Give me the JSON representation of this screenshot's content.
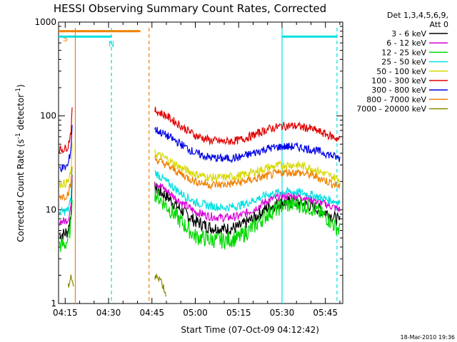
{
  "chart_data": {
    "type": "line",
    "title": "HESSI Observing Summary Count Rates, Corrected",
    "xlabel": "Start Time (07-Oct-09 04:12:42)",
    "ylabel": "Corrected Count Rate (s",
    "ylabel_sup1": "-1",
    "ylabel_mid": " detector",
    "ylabel_sup2": "-1",
    "ylabel_end": ")",
    "y_scale": "log",
    "ylim": [
      1,
      1000
    ],
    "xlim": [
      "04:12:42",
      "05:51:00"
    ],
    "x_ticks": [
      "04:15",
      "04:30",
      "04:45",
      "05:00",
      "05:15",
      "05:30",
      "05:45"
    ],
    "y_ticks": [
      "1",
      "10",
      "100",
      "1000"
    ],
    "legend_header": [
      "Det 1,3,4,5,6,9,",
      "Att 0"
    ],
    "legend_position": "top-right",
    "footer": "18-Mar-2010 19:36",
    "series": [
      {
        "name": "3 - 6 keV",
        "color": "#000000",
        "segments": [
          {
            "x": [
              "04:13:00",
              "04:14:00",
              "04:15:00",
              "04:16:00",
              "04:17:00",
              "04:17:30"
            ],
            "y": [
              5.5,
              5.5,
              5.6,
              6.0,
              9,
              25
            ]
          },
          {
            "x": [
              "04:46:00",
              "04:50:00",
              "04:55:00",
              "05:00:00",
              "05:05:00",
              "05:10:00",
              "05:15:00",
              "05:20:00",
              "05:25:00",
              "05:30:00",
              "05:35:00",
              "05:40:00",
              "05:45:00",
              "05:50:00"
            ],
            "y": [
              17,
              14,
              10,
              7.5,
              6.5,
              6.2,
              6.5,
              8,
              10.5,
              12,
              12,
              11,
              9.5,
              7.5
            ]
          }
        ]
      },
      {
        "name": "6 - 12 keV",
        "color": "#d800d8",
        "segments": [
          {
            "x": [
              "04:13:00",
              "04:14:00",
              "04:15:00",
              "04:16:00",
              "04:17:00",
              "04:17:30"
            ],
            "y": [
              7.5,
              7.5,
              7.6,
              8,
              11,
              30
            ]
          },
          {
            "x": [
              "04:46:00",
              "04:50:00",
              "04:55:00",
              "05:00:00",
              "05:05:00",
              "05:10:00",
              "05:15:00",
              "05:20:00",
              "05:25:00",
              "05:30:00",
              "05:35:00",
              "05:40:00",
              "05:45:00",
              "05:50:00"
            ],
            "y": [
              20,
              16,
              12,
              9.5,
              8.5,
              8.2,
              8.5,
              10,
              12.5,
              14,
              14,
              13,
              11.5,
              10
            ]
          }
        ]
      },
      {
        "name": "12 - 25 keV",
        "color": "#00d800",
        "segments": [
          {
            "x": [
              "04:13:00",
              "04:14:00",
              "04:15:00",
              "04:16:00",
              "04:17:00",
              "04:17:30"
            ],
            "y": [
              4.2,
              4.2,
              4.3,
              4.8,
              7,
              18
            ]
          },
          {
            "x": [
              "04:46:00",
              "04:50:00",
              "04:55:00",
              "05:00:00",
              "05:05:00",
              "05:10:00",
              "05:15:00",
              "05:20:00",
              "05:25:00",
              "05:30:00",
              "05:35:00",
              "05:40:00",
              "05:45:00",
              "05:50:00"
            ],
            "y": [
              15,
              11,
              7.5,
              5.2,
              4.8,
              4.7,
              5,
              6.5,
              9,
              11,
              11.5,
              10.5,
              8.5,
              6
            ]
          }
        ]
      },
      {
        "name": "25 - 50 keV",
        "color": "#00e0e0",
        "segments": [
          {
            "x": [
              "04:13:00",
              "04:14:00",
              "04:15:00",
              "04:16:00",
              "04:17:00",
              "04:17:30"
            ],
            "y": [
              9.5,
              9.5,
              9.6,
              10,
              13,
              35
            ]
          },
          {
            "x": [
              "04:46:00",
              "04:50:00",
              "04:55:00",
              "05:00:00",
              "05:05:00",
              "05:10:00",
              "05:15:00",
              "05:20:00",
              "05:25:00",
              "05:30:00",
              "05:35:00",
              "05:40:00",
              "05:45:00",
              "05:50:00"
            ],
            "y": [
              25,
              20,
              15,
              12,
              11,
              10.5,
              11,
              12.5,
              14.5,
              15.5,
              15.5,
              14.5,
              13,
              12
            ]
          }
        ]
      },
      {
        "name": "50 - 100 keV",
        "color": "#d8d800",
        "segments": [
          {
            "x": [
              "04:13:00",
              "04:14:00",
              "04:15:00",
              "04:16:00",
              "04:17:00",
              "04:17:30"
            ],
            "y": [
              19,
              19,
              19,
              20,
              25,
              55
            ]
          },
          {
            "x": [
              "04:46:00",
              "04:50:00",
              "04:55:00",
              "05:00:00",
              "05:05:00",
              "05:10:00",
              "05:15:00",
              "05:20:00",
              "05:25:00",
              "05:30:00",
              "05:35:00",
              "05:40:00",
              "05:45:00",
              "05:50:00"
            ],
            "y": [
              40,
              35,
              28,
              24,
              22,
              22,
              23,
              25,
              28,
              30,
              30,
              28,
              24,
              21
            ]
          }
        ]
      },
      {
        "name": "100 - 300 keV",
        "color": "#e00000",
        "segments": [
          {
            "x": [
              "04:13:00",
              "04:14:00",
              "04:15:00",
              "04:16:00",
              "04:17:00",
              "04:17:30"
            ],
            "y": [
              44,
              44,
              45,
              48,
              70,
              125
            ]
          },
          {
            "x": [
              "04:46:00",
              "04:50:00",
              "04:55:00",
              "05:00:00",
              "05:05:00",
              "05:10:00",
              "05:15:00",
              "05:20:00",
              "05:25:00",
              "05:30:00",
              "05:35:00",
              "05:40:00",
              "05:45:00",
              "05:50:00"
            ],
            "y": [
              115,
              100,
              78,
              62,
              55,
              53,
              55,
              62,
              72,
              78,
              78,
              73,
              64,
              56
            ]
          }
        ]
      },
      {
        "name": "300 - 800 keV",
        "color": "#0000e8",
        "segments": [
          {
            "x": [
              "04:13:00",
              "04:14:00",
              "04:15:00",
              "04:16:00",
              "04:17:00",
              "04:17:30"
            ],
            "y": [
              28,
              28,
              28,
              30,
              45,
              95
            ]
          },
          {
            "x": [
              "04:46:00",
              "04:50:00",
              "04:55:00",
              "05:00:00",
              "05:05:00",
              "05:10:00",
              "05:15:00",
              "05:20:00",
              "05:25:00",
              "05:30:00",
              "05:35:00",
              "05:40:00",
              "05:45:00",
              "05:50:00"
            ],
            "y": [
              72,
              62,
              50,
              40,
              36,
              35,
              36,
              40,
              45,
              47,
              47,
              44,
              40,
              35
            ]
          }
        ]
      },
      {
        "name": "800 - 7000 keV",
        "color": "#f08000",
        "segments": [
          {
            "x": [
              "04:13:00",
              "04:14:00",
              "04:15:00",
              "04:16:00",
              "04:17:00",
              "04:17:30"
            ],
            "y": [
              14,
              14,
              14,
              15,
              19,
              35
            ]
          },
          {
            "x": [
              "04:46:00",
              "04:50:00",
              "04:55:00",
              "05:00:00",
              "05:05:00",
              "05:10:00",
              "05:15:00",
              "05:20:00",
              "05:25:00",
              "05:30:00",
              "05:35:00",
              "05:40:00",
              "05:45:00",
              "05:50:00"
            ],
            "y": [
              35,
              30,
              24,
              20,
              18.5,
              18.5,
              19.5,
              21,
              23,
              25,
              25,
              23.5,
              20.5,
              17.5
            ]
          }
        ]
      },
      {
        "name": "7000 - 20000 keV",
        "color": "#888800",
        "segments": [
          {
            "x": [
              "04:16:00",
              "04:17:00",
              "04:18:00"
            ],
            "y": [
              1.5,
              2.0,
              1.5
            ]
          },
          {
            "x": [
              "04:46:00",
              "04:47:00",
              "04:48:00",
              "04:49:00",
              "04:50:00"
            ],
            "y": [
              1.8,
              2.0,
              1.8,
              1.5,
              1.2
            ]
          }
        ]
      }
    ],
    "shading": [
      {
        "label": "S",
        "color": "#f08000",
        "level": 800,
        "start": "04:12:42",
        "end": "04:41:00"
      },
      {
        "label": "N",
        "color": "#00e0e0",
        "level": 700,
        "start": "04:12:42",
        "end": "04:31:00"
      },
      {
        "label": "",
        "color": "#00e0e0",
        "level": 700,
        "start": "05:30:00",
        "end": "05:49:00"
      }
    ],
    "verticals": [
      {
        "time": "04:18:30",
        "color": "#f08000",
        "style": "solid"
      },
      {
        "time": "04:44:00",
        "color": "#f08000",
        "style": "dashed"
      },
      {
        "time": "04:31:00",
        "color": "#00e0e0",
        "style": "dashed"
      },
      {
        "time": "05:30:00",
        "color": "#00e0e0",
        "style": "solid"
      },
      {
        "time": "05:49:00",
        "color": "#00e0e0",
        "style": "dashed"
      }
    ]
  }
}
